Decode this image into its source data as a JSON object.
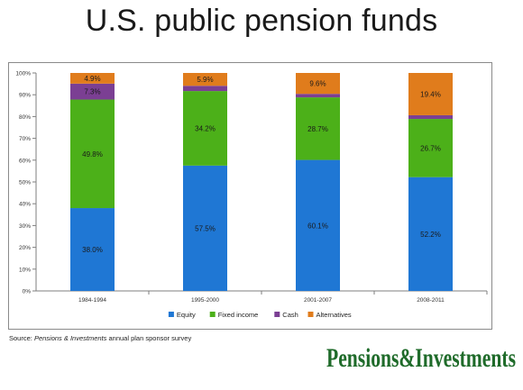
{
  "title": "U.S. public pension funds",
  "source": {
    "prefix": "Source: ",
    "publication": "Pensions & Investments",
    "suffix": " annual plan sponsor survey"
  },
  "logo": {
    "text": "Pensions&Investments",
    "color": "#1f6b2a"
  },
  "chart_data": {
    "type": "bar",
    "stacked": true,
    "categories": [
      "1984-1994",
      "1995-2000",
      "2001-2007",
      "2008-2011"
    ],
    "series": [
      {
        "name": "Equity",
        "color": "#1f77d4",
        "values": [
          38.0,
          57.5,
          60.1,
          52.2
        ],
        "labels": [
          "38.0%",
          "57.5%",
          "60.1%",
          "52.2%"
        ]
      },
      {
        "name": "Fixed income",
        "color": "#4cb019",
        "values": [
          49.8,
          34.2,
          28.7,
          26.7
        ],
        "labels": [
          "49.8%",
          "34.2%",
          "28.7%",
          "26.7%"
        ]
      },
      {
        "name": "Cash",
        "color": "#7b3f93",
        "values": [
          7.3,
          2.4,
          1.6,
          1.7
        ],
        "labels": [
          "7.3%",
          "",
          "",
          ""
        ]
      },
      {
        "name": "Alternatives",
        "color": "#e07c1c",
        "values": [
          4.9,
          5.9,
          9.6,
          19.4
        ],
        "labels": [
          "4.9%",
          "5.9%",
          "9.6%",
          "19.4%"
        ]
      }
    ],
    "ylim": [
      0,
      100
    ],
    "yticks": [
      "0%",
      "10%",
      "20%",
      "30%",
      "40%",
      "50%",
      "60%",
      "70%",
      "80%",
      "90%",
      "100%"
    ],
    "grid": false,
    "legend_position": "bottom"
  }
}
